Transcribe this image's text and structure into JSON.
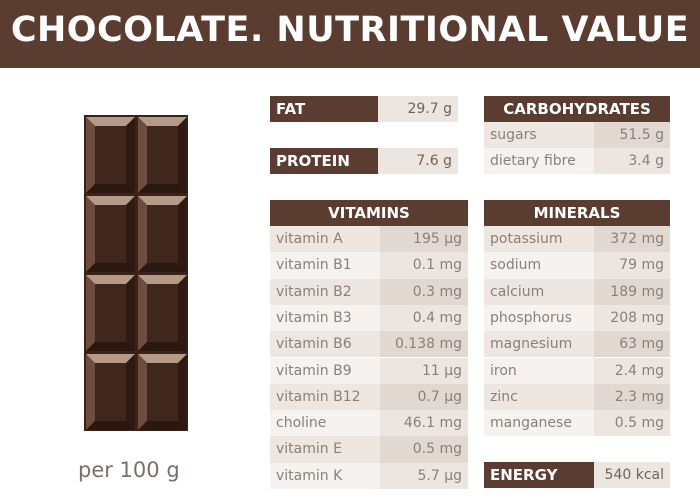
{
  "title": "CHOCOLATE. NUTRITIONAL VALUE",
  "serving": "per 100 g",
  "fat": {
    "label": "FAT",
    "value": "29.7 g"
  },
  "protein": {
    "label": "PROTEIN",
    "value": "7.6 g"
  },
  "carbohydrates": {
    "title": "CARBOHYDRATES",
    "rows": [
      [
        "sugars",
        "51.5 g"
      ],
      [
        "dietary fibre",
        "3.4 g"
      ]
    ]
  },
  "vitamins": {
    "title": "VITAMINS",
    "rows": [
      [
        "vitamin A",
        "195 µg"
      ],
      [
        "vitamin B1",
        "0.1 mg"
      ],
      [
        "vitamin B2",
        "0.3 mg"
      ],
      [
        "vitamin B3",
        "0.4 mg"
      ],
      [
        "vitamin B6",
        "0.138 mg"
      ],
      [
        "vitamin B9",
        "11 µg"
      ],
      [
        "vitamin B12",
        "0.7 µg"
      ],
      [
        "choline",
        "46.1 mg"
      ],
      [
        "vitamin E",
        "0.5 mg"
      ],
      [
        "vitamin K",
        "5.7 µg"
      ]
    ]
  },
  "minerals": {
    "title": "MINERALS",
    "rows": [
      [
        "potassium",
        "372 mg"
      ],
      [
        "sodium",
        "79 mg"
      ],
      [
        "calcium",
        "189 mg"
      ],
      [
        "phosphorus",
        "208 mg"
      ],
      [
        "magnesium",
        "63 mg"
      ],
      [
        "iron",
        "2.4 mg"
      ],
      [
        "zinc",
        "2.3 mg"
      ],
      [
        "manganese",
        "0.5 mg"
      ]
    ]
  },
  "energy": {
    "label": "ENERGY",
    "value": "540 kcal"
  }
}
